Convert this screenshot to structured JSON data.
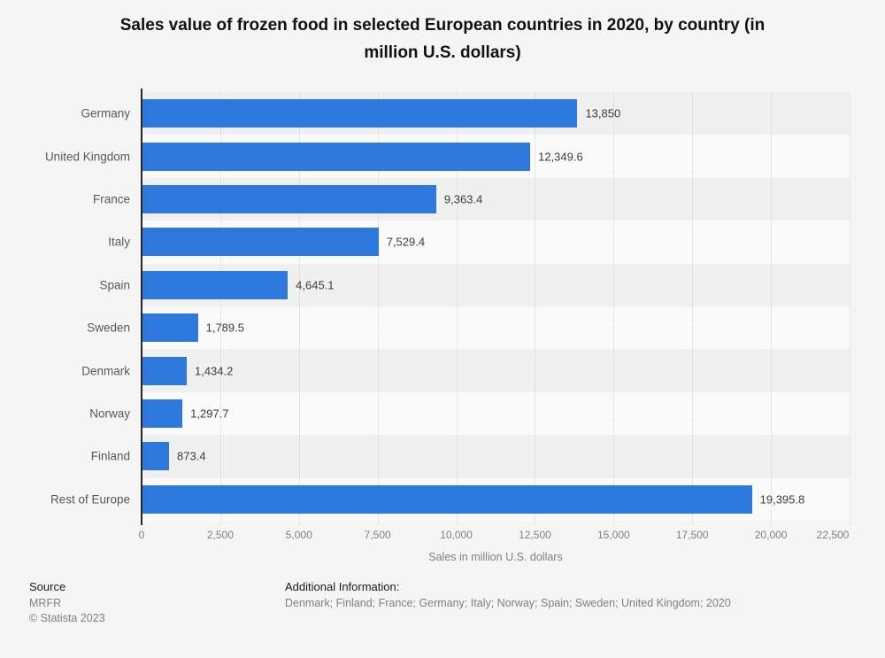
{
  "title": "Sales value of frozen food in selected European countries in 2020, by country (in\nmillion U.S. dollars)",
  "chart_data": {
    "type": "bar",
    "orientation": "horizontal",
    "title": "Sales value of frozen food in selected European countries in 2020, by country (in million U.S. dollars)",
    "categories": [
      "Germany",
      "United Kingdom",
      "France",
      "Italy",
      "Spain",
      "Sweden",
      "Denmark",
      "Norway",
      "Finland",
      "Rest of Europe"
    ],
    "values": [
      13850,
      12349.6,
      9363.4,
      7529.4,
      4645.1,
      1789.5,
      1434.2,
      1297.7,
      873.4,
      19395.8
    ],
    "value_labels": [
      "13,850",
      "12,349.6",
      "9,363.4",
      "7,529.4",
      "4,645.1",
      "1,789.5",
      "1,434.2",
      "1,297.7",
      "873.4",
      "19,395.8"
    ],
    "xlabel": "Sales in million U.S. dollars",
    "ylabel": "",
    "xlim": [
      0,
      22500
    ],
    "xticks": [
      0,
      2500,
      5000,
      7500,
      10000,
      12500,
      15000,
      17500,
      20000,
      22500
    ],
    "xtick_labels": [
      "0",
      "2,500",
      "5,000",
      "7,500",
      "10,000",
      "12,500",
      "15,000",
      "17,500",
      "20,000",
      "22,500"
    ],
    "bar_color": "#2d79de",
    "grid": true,
    "legend": false
  },
  "footer": {
    "source_label": "Source",
    "source_value": "MRFR",
    "copyright": "© Statista 2023",
    "additional_label": "Additional Information:",
    "additional_value": "Denmark; Finland; France; Germany; Italy; Norway; Spain; Sweden; United Kingdom; 2020"
  }
}
